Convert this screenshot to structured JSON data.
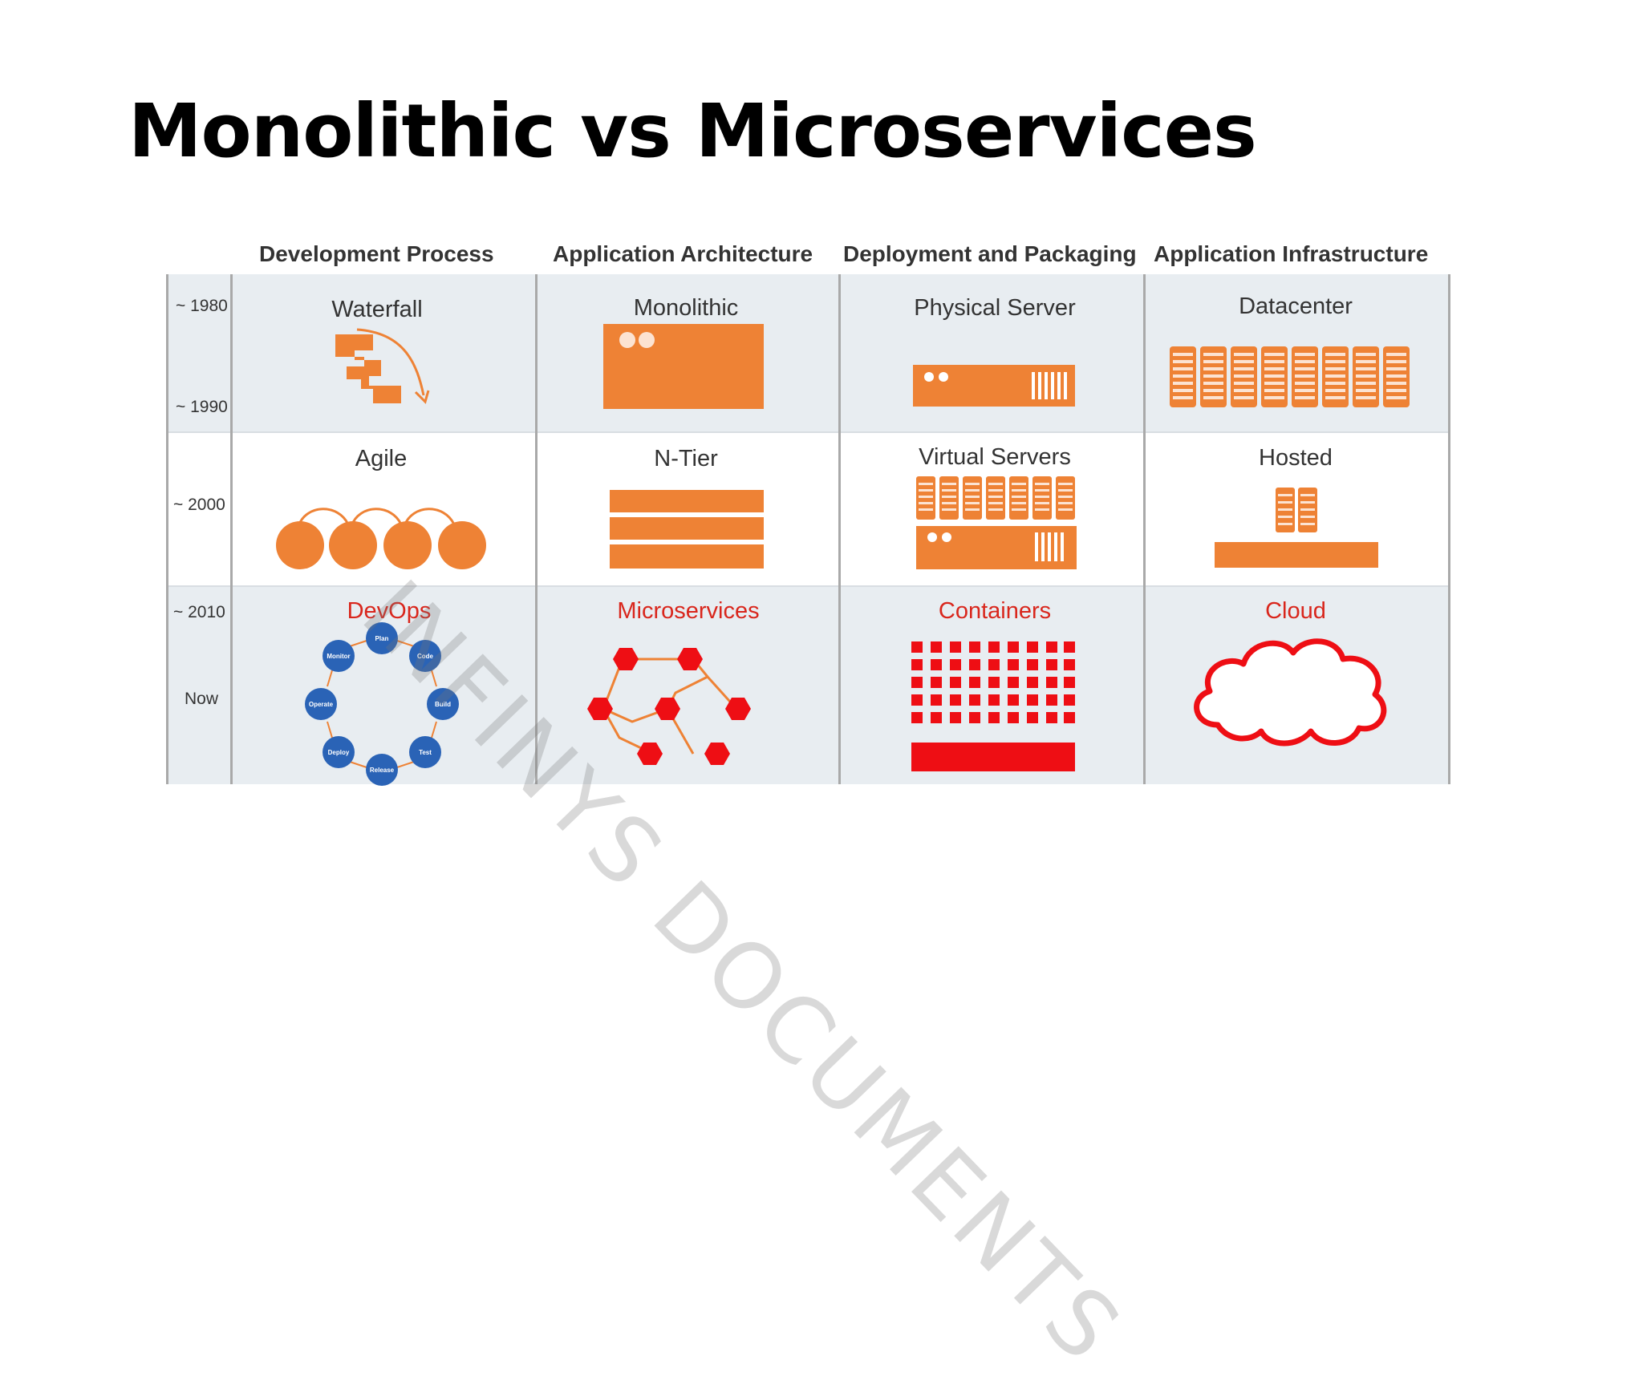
{
  "title": "Monolithic vs Microservices",
  "columns": [
    "Development Process",
    "Application Architecture",
    "Deployment and Packaging",
    "Application Infrastructure"
  ],
  "eras": [
    "~ 1980",
    "~ 1990",
    "~ 2000",
    "~ 2010",
    "Now"
  ],
  "rows": [
    [
      "Waterfall",
      "Monolithic",
      "Physical Server",
      "Datacenter"
    ],
    [
      "Agile",
      "N-Tier",
      "Virtual Servers",
      "Hosted"
    ],
    [
      "DevOps",
      "Microservices",
      "Containers",
      "Cloud"
    ]
  ],
  "devops_cycle": [
    "Plan",
    "Code",
    "Build",
    "Test",
    "Release",
    "Deploy",
    "Operate",
    "Monitor"
  ],
  "watermark": "INFINYS DOCUMENTS",
  "colors": {
    "orange": "#ee8235",
    "red": "#ee0e14",
    "blue": "#2a63b6",
    "band": "#e8edf1"
  }
}
